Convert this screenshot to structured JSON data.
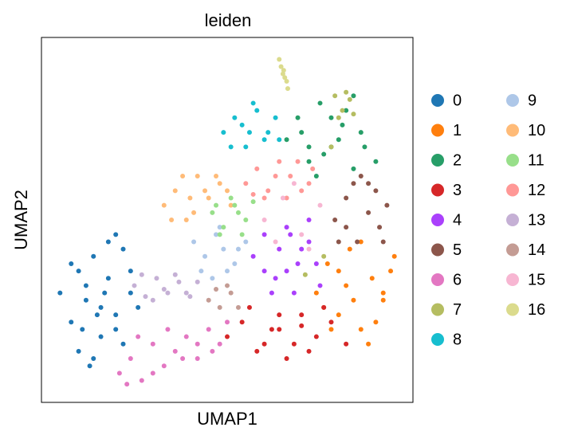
{
  "chart_data": {
    "type": "scatter",
    "title": "leiden",
    "x_label": "UMAP1",
    "y_label": "UMAP2",
    "xlim": [
      0,
      100
    ],
    "ylim": [
      0,
      100
    ],
    "series": [
      {
        "name": "0",
        "color": "#1f77b4",
        "x": [
          5,
          8,
          10,
          12,
          14,
          16,
          18,
          20,
          22,
          24,
          26,
          10,
          14,
          18,
          22,
          8,
          12,
          16,
          20,
          24,
          13,
          17,
          20,
          11,
          15
        ],
        "y": [
          30,
          22,
          36,
          28,
          40,
          18,
          34,
          24,
          42,
          30,
          26,
          14,
          12,
          44,
          16,
          38,
          32,
          26,
          20,
          36,
          10,
          30,
          46,
          20,
          24
        ]
      },
      {
        "name": "1",
        "color": "#ff7f0e",
        "x": [
          74,
          77,
          80,
          83,
          86,
          89,
          92,
          95,
          78,
          82,
          86,
          90,
          94,
          84,
          88,
          80,
          92,
          76
        ],
        "y": [
          30,
          38,
          24,
          42,
          20,
          34,
          28,
          40,
          20,
          32,
          44,
          22,
          36,
          28,
          16,
          36,
          30,
          26
        ]
      },
      {
        "name": "2",
        "color": "#279e68",
        "x": [
          66,
          69,
          72,
          75,
          78,
          81,
          84,
          87,
          90,
          70,
          74,
          78,
          82,
          86,
          76,
          80,
          84,
          72
        ],
        "y": [
          72,
          78,
          66,
          82,
          70,
          76,
          64,
          70,
          66,
          74,
          62,
          78,
          80,
          74,
          68,
          72,
          84,
          70
        ]
      },
      {
        "name": "3",
        "color": "#d62728",
        "x": [
          50,
          54,
          58,
          62,
          66,
          70,
          74,
          78,
          82,
          56,
          60,
          64,
          68,
          72,
          76,
          64,
          70
        ],
        "y": [
          18,
          22,
          14,
          20,
          12,
          24,
          18,
          22,
          16,
          26,
          16,
          24,
          16,
          14,
          26,
          20,
          21
        ]
      },
      {
        "name": "4",
        "color": "#aa40fc",
        "x": [
          57,
          60,
          63,
          66,
          69,
          72,
          75,
          60,
          64,
          68,
          72,
          62,
          66,
          70,
          74,
          67
        ],
        "y": [
          40,
          46,
          34,
          48,
          38,
          44,
          32,
          36,
          42,
          30,
          50,
          30,
          36,
          42,
          38,
          46
        ]
      },
      {
        "name": "5",
        "color": "#8c564b",
        "x": [
          79,
          82,
          85,
          88,
          91,
          93,
          80,
          84,
          88,
          92,
          86,
          82,
          90
        ],
        "y": [
          50,
          56,
          44,
          60,
          48,
          54,
          44,
          60,
          52,
          44,
          62,
          48,
          58
        ]
      },
      {
        "name": "6",
        "color": "#e377c2",
        "x": [
          21,
          24,
          27,
          30,
          33,
          36,
          39,
          42,
          45,
          48,
          50,
          26,
          30,
          34,
          38,
          42,
          46,
          23
        ],
        "y": [
          8,
          12,
          6,
          16,
          10,
          14,
          18,
          12,
          20,
          16,
          22,
          18,
          8,
          20,
          12,
          16,
          14,
          5
        ]
      },
      {
        "name": "7",
        "color": "#b5bd61",
        "x": [
          79,
          81,
          83,
          80,
          82,
          84,
          78,
          76,
          71
        ],
        "y": [
          84,
          80,
          83,
          78,
          85,
          79,
          70,
          40,
          35
        ]
      },
      {
        "name": "8",
        "color": "#17becf",
        "x": [
          49,
          52,
          55,
          58,
          61,
          64,
          51,
          54,
          57,
          60,
          63,
          56
        ],
        "y": [
          74,
          78,
          70,
          80,
          74,
          72,
          70,
          76,
          82,
          72,
          78,
          74
        ]
      },
      {
        "name": "9",
        "color": "#aec7e8",
        "x": [
          41,
          44,
          47,
          50,
          53,
          43,
          46,
          49,
          52,
          55,
          48
        ],
        "y": [
          44,
          40,
          46,
          36,
          42,
          36,
          34,
          42,
          38,
          44,
          48
        ]
      },
      {
        "name": "10",
        "color": "#ffbb78",
        "x": [
          33,
          36,
          39,
          42,
          45,
          48,
          51,
          35,
          38,
          41,
          44,
          47,
          40,
          50
        ],
        "y": [
          54,
          58,
          50,
          62,
          56,
          60,
          54,
          50,
          62,
          52,
          58,
          62,
          56,
          58
        ]
      },
      {
        "name": "11",
        "color": "#98df8a",
        "x": [
          46,
          49,
          52,
          55,
          57,
          48,
          51,
          54,
          47,
          53
        ],
        "y": [
          52,
          48,
          54,
          50,
          55,
          46,
          56,
          46,
          54,
          52
        ]
      },
      {
        "name": "12",
        "color": "#ff9896",
        "x": [
          55,
          58,
          61,
          64,
          67,
          70,
          73,
          60,
          63,
          66,
          69,
          72,
          57
        ],
        "y": [
          60,
          64,
          58,
          66,
          62,
          58,
          64,
          56,
          62,
          56,
          66,
          60,
          57
        ]
      },
      {
        "name": "13",
        "color": "#c5b0d5",
        "x": [
          25,
          28,
          31,
          34,
          37,
          40,
          27,
          30,
          33,
          36,
          39,
          42
        ],
        "y": [
          32,
          29,
          34,
          30,
          33,
          29,
          35,
          28,
          31,
          35,
          30,
          33
        ]
      },
      {
        "name": "14",
        "color": "#c49c94",
        "x": [
          45,
          48,
          51,
          53,
          47,
          50
        ],
        "y": [
          28,
          26,
          30,
          26,
          31,
          32
        ]
      },
      {
        "name": "15",
        "color": "#f7b6d2",
        "x": [
          60,
          65,
          70,
          75,
          68,
          72,
          63
        ],
        "y": [
          50,
          56,
          46,
          54,
          60,
          42,
          44
        ]
      },
      {
        "name": "16",
        "color": "#dbdb8d",
        "x": [
          64,
          64.5,
          65,
          65.5,
          66,
          66.3,
          65.2
        ],
        "y": [
          94,
          92,
          90,
          89,
          88,
          86,
          91
        ]
      }
    ]
  }
}
